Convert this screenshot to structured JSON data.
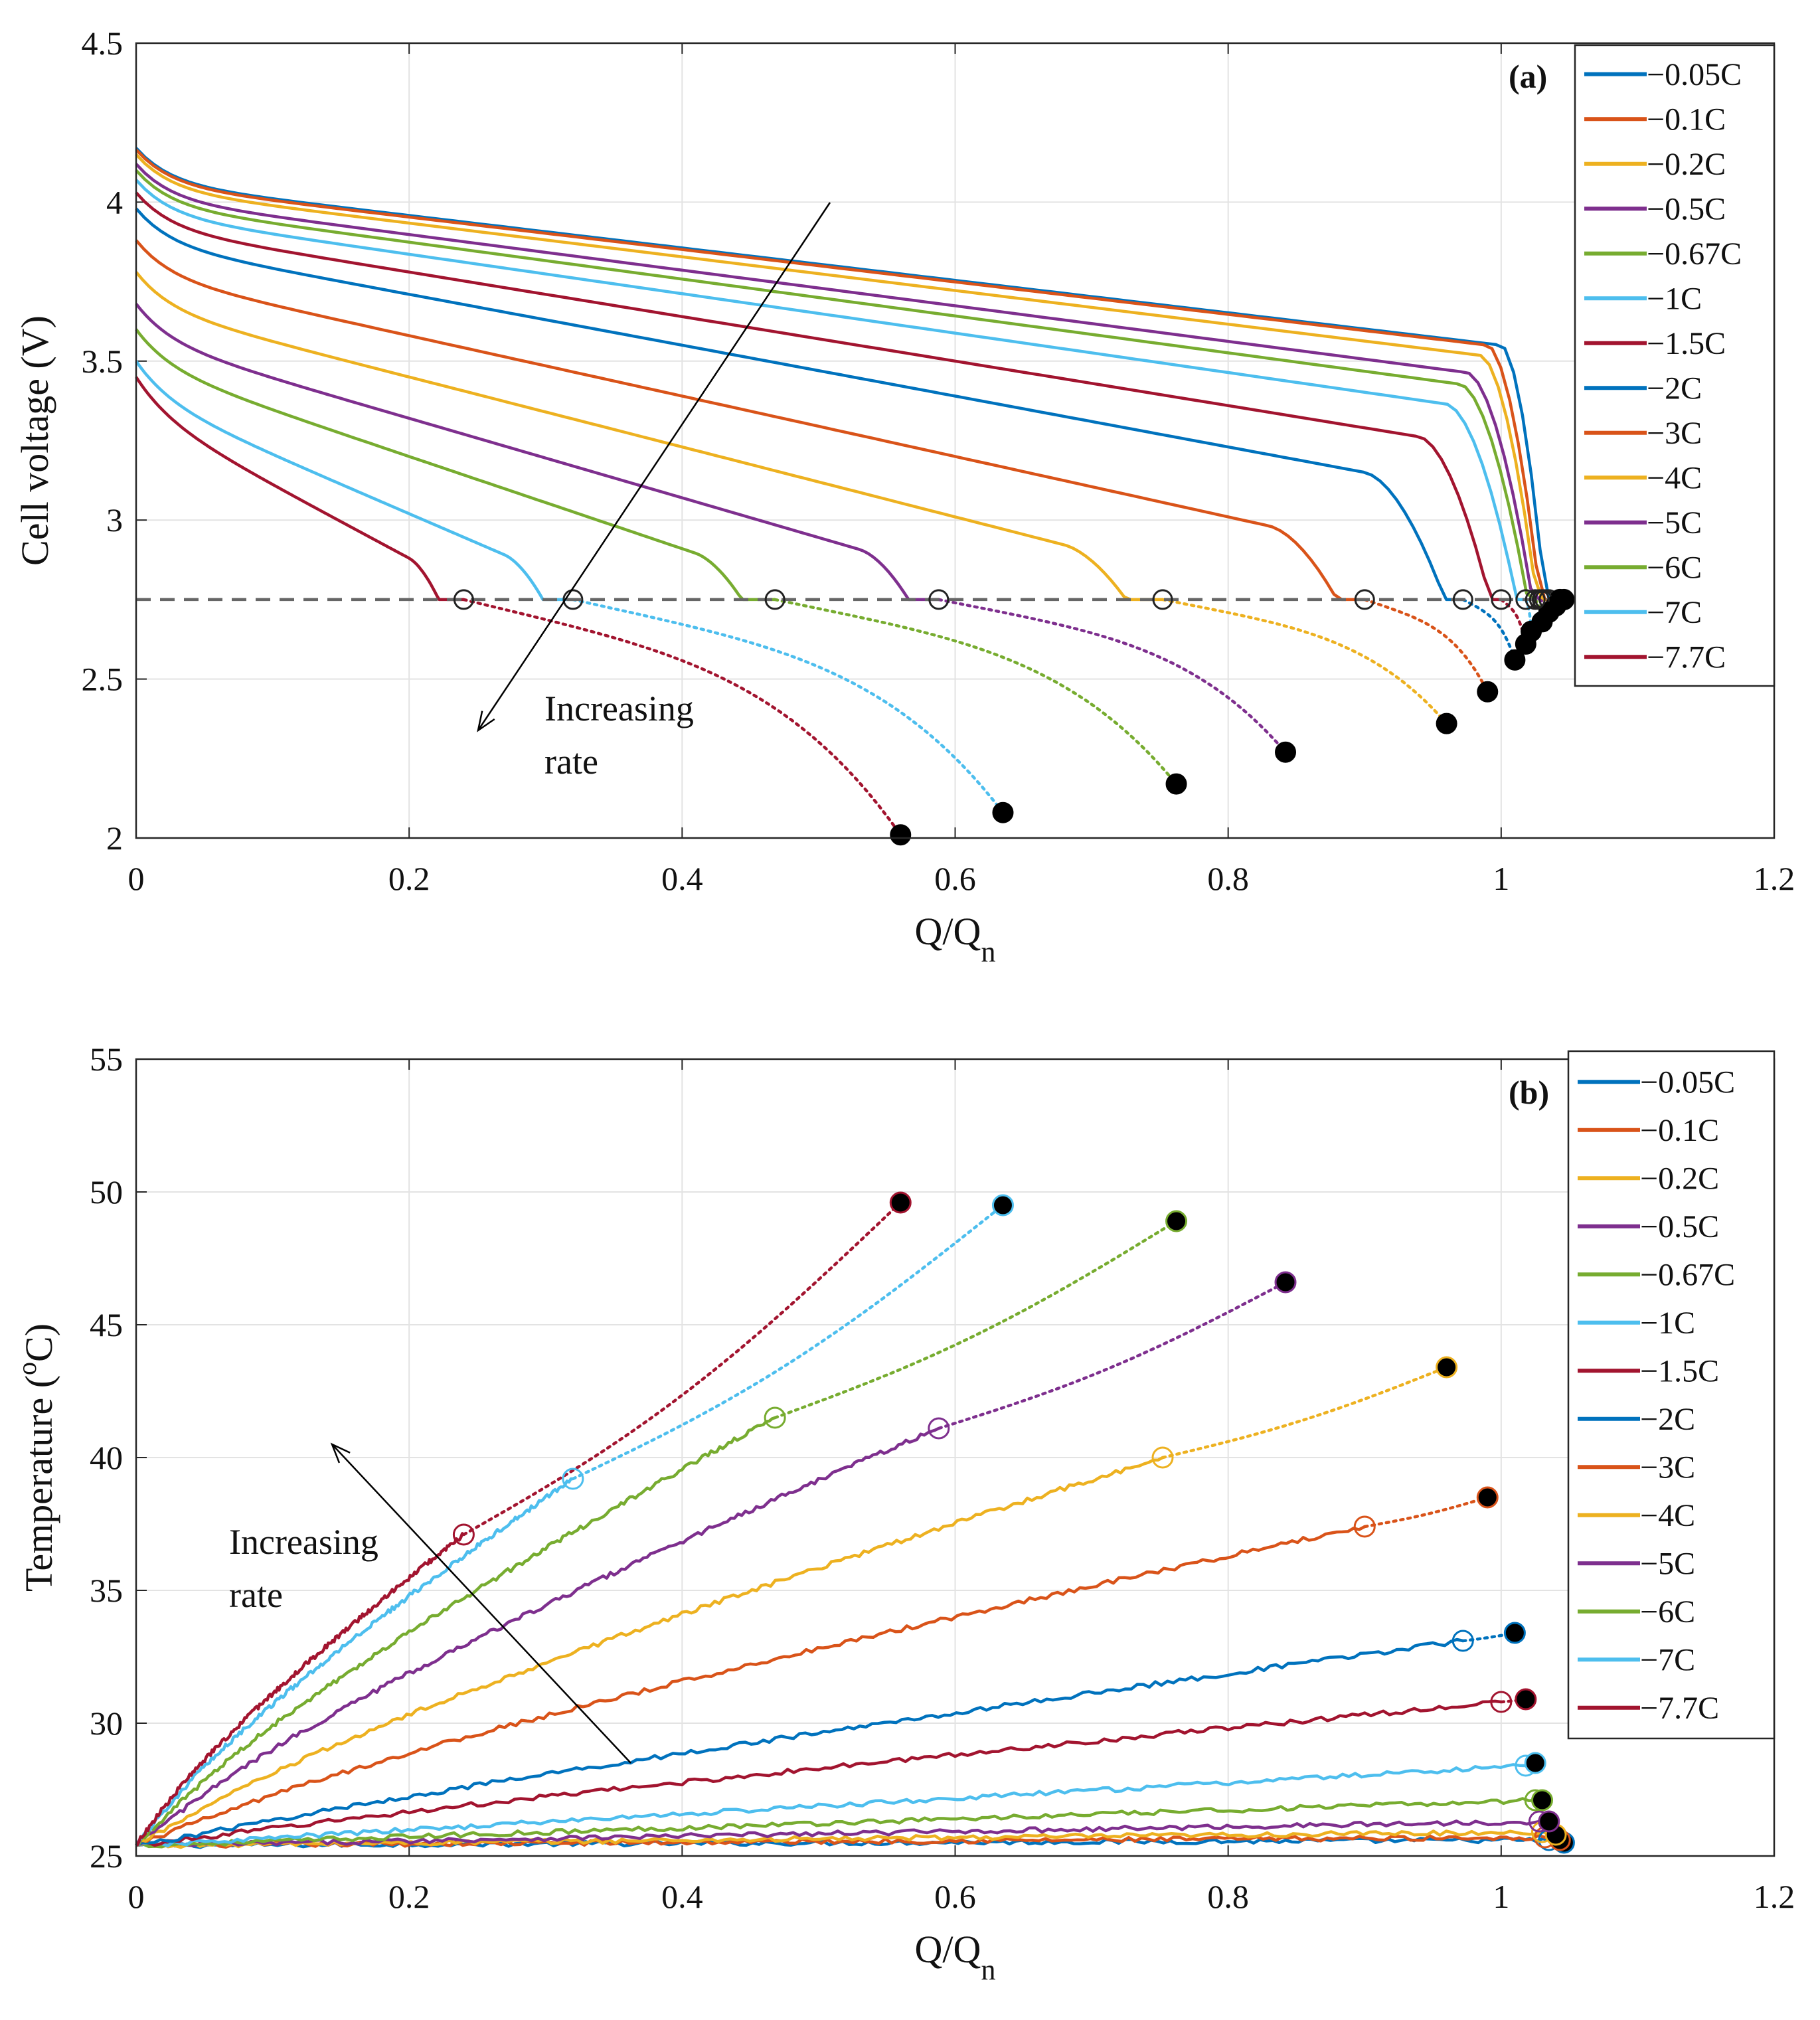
{
  "chart_data": [
    {
      "type": "line",
      "panel_label": "(a)",
      "xlabel": "Q/Q",
      "xlabel_sub": "n",
      "ylabel": "Cell voltage (V)",
      "xlim": [
        0,
        1.2
      ],
      "ylim": [
        2,
        4.5
      ],
      "xticks": [
        "0",
        "0.2",
        "0.4",
        "0.6",
        "0.8",
        "1",
        "1.2"
      ],
      "yticks": [
        "2",
        "2.5",
        "3",
        "3.5",
        "4",
        "4.5"
      ],
      "grid": true,
      "legend_position": "top-right",
      "cutoff_voltage": 2.75,
      "annotation": {
        "line1": "Increasing",
        "line2": "rate"
      },
      "series": [
        {
          "name": "−0.05C",
          "start": 4.17,
          "slope": 0.51,
          "knee": 1.0,
          "cut_x": 1.035,
          "end": [
            1.046,
            2.75
          ]
        },
        {
          "name": "−0.1C",
          "start": 4.165,
          "slope": 0.51,
          "knee": 0.99,
          "cut_x": 1.032,
          "end": [
            1.043,
            2.75
          ]
        },
        {
          "name": "−0.2C",
          "start": 4.15,
          "slope": 0.53,
          "knee": 0.985,
          "cut_x": 1.03,
          "end": [
            1.04,
            2.73
          ]
        },
        {
          "name": "−0.5C",
          "start": 4.12,
          "slope": 0.56,
          "knee": 0.975,
          "cut_x": 1.028,
          "end": [
            1.035,
            2.71
          ]
        },
        {
          "name": "−0.67C",
          "start": 4.1,
          "slope": 0.58,
          "knee": 0.97,
          "cut_x": 1.025,
          "end": [
            1.03,
            2.68
          ]
        },
        {
          "name": "−1C",
          "start": 4.07,
          "slope": 0.62,
          "knee": 0.96,
          "cut_x": 1.018,
          "end": [
            1.022,
            2.65
          ]
        },
        {
          "name": "−1.5C",
          "start": 4.03,
          "slope": 0.7,
          "knee": 0.94,
          "cut_x": 1.0,
          "end": [
            1.018,
            2.61
          ]
        },
        {
          "name": "−2C",
          "start": 3.98,
          "slope": 0.8,
          "knee": 0.9,
          "cut_x": 0.972,
          "end": [
            1.01,
            2.56
          ]
        },
        {
          "name": "−3C",
          "start": 3.88,
          "slope": 0.95,
          "knee": 0.83,
          "cut_x": 0.9,
          "end": [
            0.99,
            2.46
          ]
        },
        {
          "name": "−4C",
          "start": 3.78,
          "slope": 1.1,
          "knee": 0.68,
          "cut_x": 0.752,
          "end": [
            0.96,
            2.36
          ]
        },
        {
          "name": "−5C",
          "start": 3.68,
          "slope": 1.25,
          "knee": 0.53,
          "cut_x": 0.588,
          "end": [
            0.842,
            2.27
          ]
        },
        {
          "name": "−6C",
          "start": 3.6,
          "slope": 1.45,
          "knee": 0.41,
          "cut_x": 0.468,
          "end": [
            0.762,
            2.17
          ]
        },
        {
          "name": "−7C",
          "start": 3.5,
          "slope": 1.85,
          "knee": 0.27,
          "cut_x": 0.32,
          "end": [
            0.635,
            2.08
          ]
        },
        {
          "name": "−7.7C",
          "start": 3.45,
          "slope": 2.3,
          "knee": 0.2,
          "cut_x": 0.24,
          "end": [
            0.56,
            2.01
          ]
        }
      ]
    },
    {
      "type": "line",
      "panel_label": "(b)",
      "xlabel": "Q/Q",
      "xlabel_sub": "n",
      "ylabel": "Temperature (",
      "ylabel_sup": "o",
      "ylabel_end": "C)",
      "xlim": [
        0,
        1.2
      ],
      "ylim": [
        25,
        55
      ],
      "xticks": [
        "0",
        "0.2",
        "0.4",
        "0.6",
        "0.8",
        "1",
        "1.2"
      ],
      "yticks": [
        "25",
        "30",
        "35",
        "40",
        "45",
        "50",
        "55"
      ],
      "grid": true,
      "legend_position": "top-right",
      "annotation": {
        "line1": "Increasing",
        "line2": "rate"
      },
      "series": [
        {
          "name": "−0.05C",
          "cut": [
            1.035,
            25.6
          ],
          "end": [
            1.046,
            25.5
          ]
        },
        {
          "name": "−0.1C",
          "cut": [
            1.032,
            25.7
          ],
          "end": [
            1.043,
            25.6
          ]
        },
        {
          "name": "−0.2C",
          "cut": [
            1.03,
            25.9
          ],
          "end": [
            1.04,
            25.8
          ]
        },
        {
          "name": "−0.5C",
          "cut": [
            1.028,
            26.3
          ],
          "end": [
            1.035,
            26.3
          ]
        },
        {
          "name": "−0.67C",
          "cut": [
            1.025,
            27.1
          ],
          "end": [
            1.03,
            27.1
          ]
        },
        {
          "name": "−1C",
          "cut": [
            1.018,
            28.4
          ],
          "end": [
            1.025,
            28.5
          ]
        },
        {
          "name": "−1.5C",
          "cut": [
            1.0,
            30.8
          ],
          "end": [
            1.018,
            30.9
          ]
        },
        {
          "name": "−2C",
          "cut": [
            0.972,
            33.1
          ],
          "end": [
            1.01,
            33.4
          ]
        },
        {
          "name": "−3C",
          "cut": [
            0.9,
            37.4
          ],
          "end": [
            0.99,
            38.5
          ]
        },
        {
          "name": "−4C",
          "cut": [
            0.752,
            40.0
          ],
          "end": [
            0.96,
            43.4
          ]
        },
        {
          "name": "−5C",
          "cut": [
            0.588,
            41.1
          ],
          "end": [
            0.842,
            46.6
          ]
        },
        {
          "name": "−6C",
          "cut": [
            0.468,
            41.5
          ],
          "end": [
            0.762,
            48.9
          ]
        },
        {
          "name": "−7C",
          "cut": [
            0.32,
            39.2
          ],
          "end": [
            0.635,
            49.5
          ]
        },
        {
          "name": "−7.7C",
          "cut": [
            0.24,
            37.1
          ],
          "end": [
            0.56,
            49.6
          ]
        }
      ]
    }
  ],
  "colors": [
    "#0072BD",
    "#D95319",
    "#EDB120",
    "#7E2F8E",
    "#77AC30",
    "#4DBEEE",
    "#A2142F"
  ]
}
